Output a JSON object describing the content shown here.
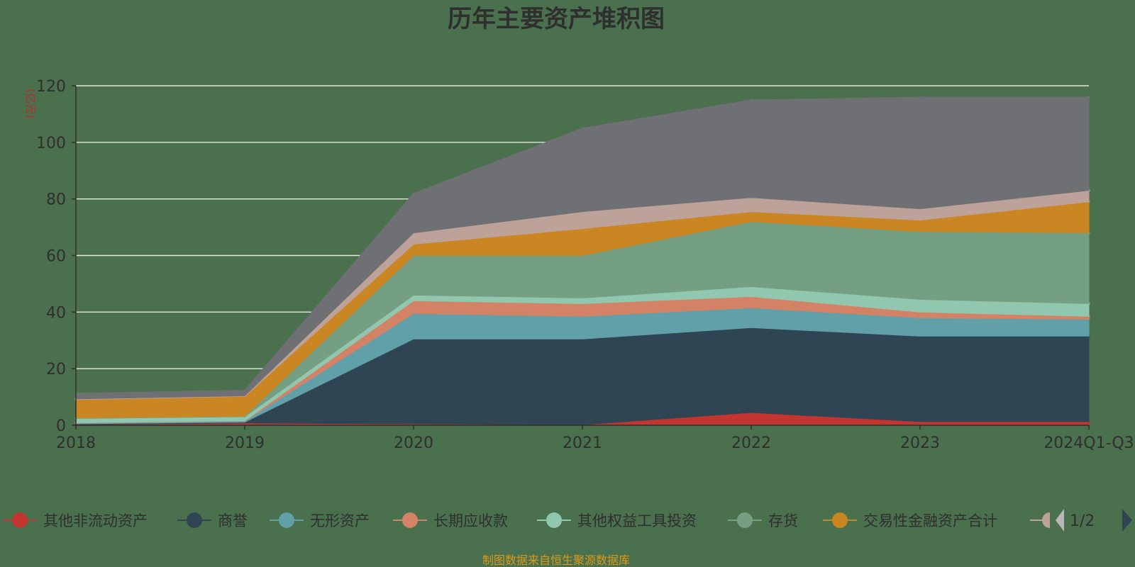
{
  "chart_data": {
    "type": "area",
    "title": "历年主要资产堆积图",
    "ylabel": "(亿元)",
    "xlabel": "",
    "categories": [
      "2018",
      "2019",
      "2020",
      "2021",
      "2022",
      "2023",
      "2024Q1-Q3"
    ],
    "ylim": [
      0,
      120
    ],
    "yticks": [
      0,
      20,
      40,
      60,
      80,
      100,
      120
    ],
    "grid": true,
    "stacked": true,
    "legend_position": "bottom",
    "legend_page": "1/2",
    "series": [
      {
        "name": "其他非流动资产",
        "color": "#c23531",
        "values": [
          0.3,
          0.8,
          0.5,
          0.2,
          4.5,
          1.3,
          1.3
        ]
      },
      {
        "name": "商誉",
        "color": "#2f4554",
        "values": [
          0.2,
          0.3,
          30.0,
          30.3,
          30.0,
          30.2,
          30.2
        ]
      },
      {
        "name": "无形资产",
        "color": "#61a0a8",
        "values": [
          0.3,
          0.4,
          9.0,
          8.0,
          7.0,
          6.5,
          6.0
        ]
      },
      {
        "name": "长期应收款",
        "color": "#d48265",
        "values": [
          0.1,
          0.1,
          4.5,
          4.5,
          4.0,
          2.0,
          1.0
        ]
      },
      {
        "name": "其他权益工具投资",
        "color": "#91c7ae",
        "values": [
          1.5,
          1.4,
          2.0,
          2.0,
          3.5,
          4.5,
          4.5
        ]
      },
      {
        "name": "存货",
        "color": "#749f83",
        "values": [
          0.2,
          0.2,
          14.0,
          15.0,
          23.0,
          24.0,
          25.0
        ]
      },
      {
        "name": "交易性金融资产合计",
        "color": "#ca8622",
        "values": [
          6.5,
          7.0,
          4.0,
          9.5,
          3.5,
          4.0,
          11.0
        ]
      },
      {
        "name": "",
        "color": "#bda29a",
        "values": [
          0.2,
          0.2,
          4.0,
          6.0,
          5.0,
          4.0,
          4.0
        ]
      },
      {
        "name": "",
        "color": "#6e7074",
        "values": [
          2.0,
          2.0,
          14.0,
          29.5,
          34.5,
          39.5,
          33.0
        ]
      }
    ]
  },
  "source": "制图数据来自恒生聚源数据库"
}
